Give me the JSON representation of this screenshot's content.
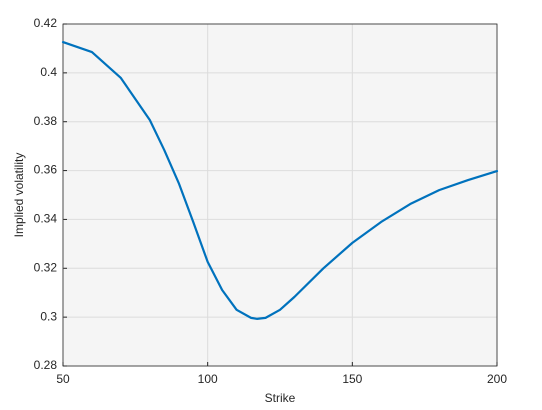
{
  "chart_data": {
    "type": "line",
    "xlabel": "Strike",
    "ylabel": "Implied volatility",
    "x": [
      50,
      60,
      70,
      80,
      85,
      90,
      95,
      100,
      105,
      110,
      115,
      117,
      120,
      125,
      130,
      140,
      150,
      160,
      170,
      180,
      190,
      200
    ],
    "series": [
      {
        "name": "Implied volatility",
        "color": "#0072bd",
        "values": [
          0.4126,
          0.4085,
          0.3979,
          0.3807,
          0.3684,
          0.3549,
          0.339,
          0.3226,
          0.3111,
          0.303,
          0.2997,
          0.2993,
          0.2997,
          0.303,
          0.3083,
          0.32,
          0.3304,
          0.339,
          0.3463,
          0.352,
          0.3561,
          0.3598
        ]
      }
    ],
    "xlim": [
      50,
      200
    ],
    "xticks": [
      50,
      100,
      150,
      200
    ],
    "ylim": [
      0.28,
      0.42
    ],
    "yticks": [
      0.28,
      0.3,
      0.32,
      0.34,
      0.36,
      0.38,
      0.4,
      0.42
    ],
    "grid": true
  }
}
